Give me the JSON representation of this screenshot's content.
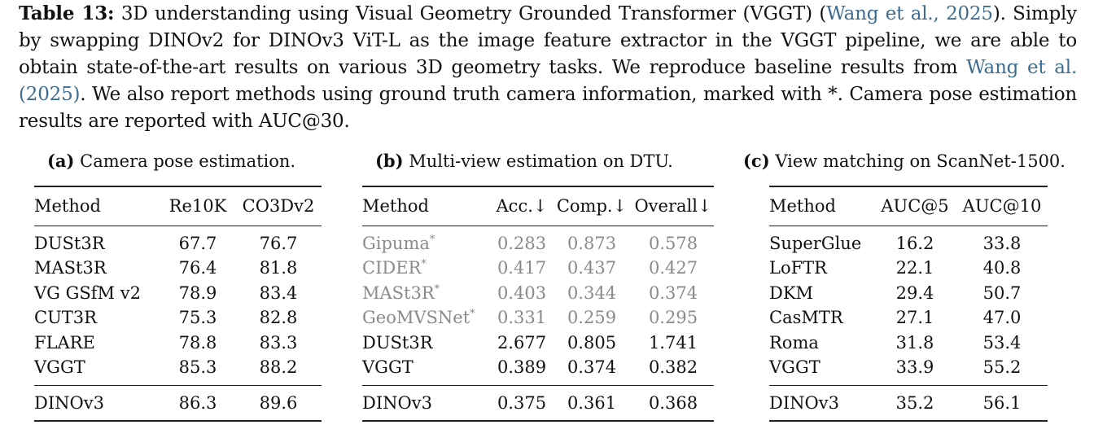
{
  "caption": {
    "label": "Table 13:",
    "text_a": "3D understanding using Visual Geometry Grounded Transformer (VGGT) (",
    "cite1": "Wang et al., 2025",
    "text_b": "). Simply by swapping DINOv2 for DINOv3 ViT-L as the image feature extractor in the VGGT pipeline, we are able to obtain state-of-the-art results on various 3D geometry tasks. We reproduce baseline results from ",
    "cite2": "Wang et al. (2025)",
    "text_c": ". We also report methods using ground truth camera information, marked with *. Camera pose estimation results are reported with AUC@30."
  },
  "table_a": {
    "label": "(a)",
    "title": "Camera pose estimation.",
    "headers": [
      "Method",
      "Re10K",
      "CO3Dv2"
    ],
    "rows": [
      [
        "DUSt3R",
        "67.7",
        "76.7"
      ],
      [
        "MASt3R",
        "76.4",
        "81.8"
      ],
      [
        "VG GSfM v2",
        "78.9",
        "83.4"
      ],
      [
        "CUT3R",
        "75.3",
        "82.8"
      ],
      [
        "FLARE",
        "78.8",
        "83.3"
      ],
      [
        "VGGT",
        "85.3",
        "88.2"
      ]
    ],
    "final": [
      "DINOv3",
      "86.3",
      "89.6"
    ]
  },
  "table_b": {
    "label": "(b)",
    "title": "Multi-view estimation on DTU.",
    "headers": [
      "Method",
      "Acc.↓",
      "Comp.↓",
      "Overall↓"
    ],
    "rows": [
      [
        "Gipuma",
        "0.283",
        "0.873",
        "0.578"
      ],
      [
        "CIDER",
        "0.417",
        "0.437",
        "0.427"
      ],
      [
        "MASt3R",
        "0.403",
        "0.344",
        "0.374"
      ],
      [
        "GeoMVSNet",
        "0.331",
        "0.259",
        "0.295"
      ],
      [
        "DUSt3R",
        "2.677",
        "0.805",
        "1.741"
      ],
      [
        "VGGT",
        "0.389",
        "0.374",
        "0.382"
      ]
    ],
    "star": "*",
    "final": [
      "DINOv3",
      "0.375",
      "0.361",
      "0.368"
    ]
  },
  "table_c": {
    "label": "(c)",
    "title": "View matching on ScanNet-1500.",
    "headers": [
      "Method",
      "AUC@5",
      "AUC@10"
    ],
    "rows": [
      [
        "SuperGlue",
        "16.2",
        "33.8"
      ],
      [
        "LoFTR",
        "22.1",
        "40.8"
      ],
      [
        "DKM",
        "29.4",
        "50.7"
      ],
      [
        "CasMTR",
        "27.1",
        "47.0"
      ],
      [
        "Roma",
        "31.8",
        "53.4"
      ],
      [
        "VGGT",
        "33.9",
        "55.2"
      ]
    ],
    "final": [
      "DINOv3",
      "35.2",
      "56.1"
    ]
  },
  "colors": {
    "citation": "#3e6c8f",
    "gt_camera_rows": "#8a8a8a"
  }
}
